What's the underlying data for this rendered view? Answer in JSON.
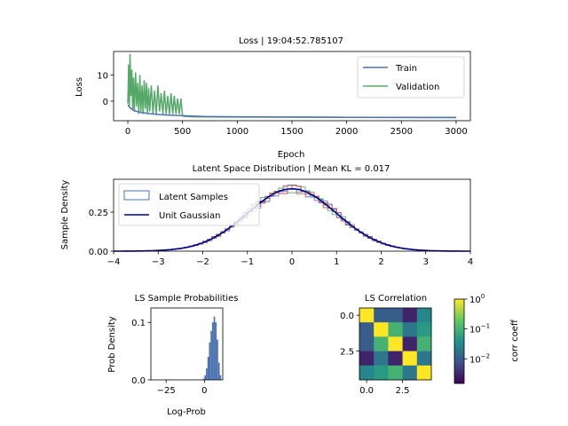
{
  "chart_data": [
    {
      "type": "line",
      "title": "Loss | 19:04:52.785107",
      "xlabel": "Epoch",
      "ylabel": "Loss",
      "xlim": [
        -130,
        3130
      ],
      "ylim": [
        -7.5,
        19
      ],
      "xticks": [
        0,
        500,
        1000,
        1500,
        2000,
        2500,
        3000
      ],
      "yticks": [
        0,
        10
      ],
      "legend_position": "top-right",
      "series": [
        {
          "name": "Train",
          "color": "#4c72b0",
          "points": [
            [
              0,
              -1.5
            ],
            [
              20,
              -2.5
            ],
            [
              50,
              -3.5
            ],
            [
              100,
              -4.2
            ],
            [
              200,
              -4.8
            ],
            [
              300,
              -5.2
            ],
            [
              500,
              -5.6
            ],
            [
              700,
              -5.9
            ],
            [
              1000,
              -6.0
            ],
            [
              2000,
              -6.2
            ],
            [
              3000,
              -6.3
            ]
          ]
        },
        {
          "name": "Validation",
          "color": "#55a868",
          "points": [
            [
              0,
              -1
            ],
            [
              8,
              14
            ],
            [
              14,
              -2
            ],
            [
              20,
              18
            ],
            [
              28,
              2
            ],
            [
              36,
              12
            ],
            [
              44,
              -3
            ],
            [
              52,
              9
            ],
            [
              60,
              -4
            ],
            [
              70,
              11
            ],
            [
              80,
              -2
            ],
            [
              90,
              7
            ],
            [
              100,
              -5
            ],
            [
              110,
              10
            ],
            [
              120,
              -4
            ],
            [
              130,
              6
            ],
            [
              140,
              -5
            ],
            [
              150,
              8
            ],
            [
              160,
              -3
            ],
            [
              170,
              7
            ],
            [
              180,
              -5
            ],
            [
              190,
              5
            ],
            [
              200,
              -4
            ],
            [
              215,
              6
            ],
            [
              230,
              -5
            ],
            [
              245,
              4
            ],
            [
              260,
              -5
            ],
            [
              275,
              6
            ],
            [
              290,
              -4
            ],
            [
              305,
              3
            ],
            [
              320,
              -5
            ],
            [
              335,
              4
            ],
            [
              350,
              -5
            ],
            [
              365,
              2
            ],
            [
              380,
              -5
            ],
            [
              395,
              3
            ],
            [
              410,
              -5
            ],
            [
              425,
              2
            ],
            [
              440,
              -5
            ],
            [
              455,
              1
            ],
            [
              470,
              -5
            ],
            [
              485,
              1
            ],
            [
              500,
              -5.5
            ],
            [
              510,
              -5.8
            ],
            [
              600,
              -6.0
            ],
            [
              1000,
              -6.1
            ],
            [
              2000,
              -6.2
            ],
            [
              3000,
              -6.2
            ]
          ]
        }
      ]
    },
    {
      "type": "histogram",
      "title": "Latent Space Distribution | Mean KL = 0.017",
      "ylabel": "Sample Density",
      "xlim": [
        -4,
        4
      ],
      "ylim": [
        0,
        0.46
      ],
      "xticks": [
        -4,
        -3,
        -2,
        -1,
        0,
        1,
        2,
        3,
        4
      ],
      "xtick_labels": [
        "−4",
        "−3",
        "−2",
        "−1",
        "0",
        "1",
        "2",
        "3",
        "4"
      ],
      "yticks": [
        0,
        0.25
      ],
      "ytick_labels": [
        "0.00",
        "0.25"
      ],
      "legend_position": "top-left",
      "legend": [
        "Latent Samples",
        "Unit Gaussian"
      ],
      "gaussian_color": "#00008b",
      "hist_colors": [
        "#4c72b0",
        "#dd8452",
        "#55a868",
        "#c44e52",
        "#8172b3"
      ],
      "hist_bin_width": 0.1,
      "hist_range": [
        -3.5,
        3.5
      ]
    },
    {
      "type": "histogram",
      "title": "LS Sample Probabilities",
      "xlabel": "Log-Prob",
      "ylabel": "Prob Density",
      "xlim": [
        -35,
        12
      ],
      "ylim": [
        0,
        0.125
      ],
      "xticks": [
        -25,
        0
      ],
      "xtick_labels": [
        "−25",
        "0"
      ],
      "yticks": [
        0,
        0.1
      ],
      "ytick_labels": [
        "0.0",
        "0.1"
      ],
      "color": "#4c72b0",
      "bins": [
        [
          -1,
          0.002
        ],
        [
          0,
          0.008
        ],
        [
          1,
          0.02
        ],
        [
          2,
          0.04
        ],
        [
          3,
          0.065
        ],
        [
          4,
          0.085
        ],
        [
          5,
          0.1
        ],
        [
          6,
          0.11
        ],
        [
          7,
          0.1
        ],
        [
          8,
          0.07
        ],
        [
          9,
          0.03
        ],
        [
          10,
          0.008
        ]
      ]
    },
    {
      "type": "heatmap",
      "title": "LS Correlation",
      "xticks": [
        0.0,
        2.5
      ],
      "xtick_labels": [
        "0.0",
        "2.5"
      ],
      "yticks": [
        0.0,
        2.5
      ],
      "ytick_labels": [
        "0.0",
        "2.5"
      ],
      "colorbar_label": "corr coeff",
      "colorbar_scale": "log",
      "colorbar_ticks": [
        {
          "value": 1,
          "base": "10",
          "exp": "0"
        },
        {
          "value": 0.1,
          "base": "10",
          "exp": "−1"
        },
        {
          "value": 0.01,
          "base": "10",
          "exp": "−2"
        }
      ],
      "colorbar_range": [
        0.0015,
        1
      ],
      "matrix": [
        [
          1.0,
          0.01,
          0.01,
          0.003,
          0.03
        ],
        [
          0.01,
          1.0,
          0.1,
          0.02,
          0.05
        ],
        [
          0.01,
          0.1,
          1.0,
          0.003,
          0.1
        ],
        [
          0.003,
          0.02,
          0.003,
          1.0,
          0.02
        ],
        [
          0.03,
          0.05,
          0.1,
          0.02,
          1.0
        ]
      ]
    }
  ]
}
